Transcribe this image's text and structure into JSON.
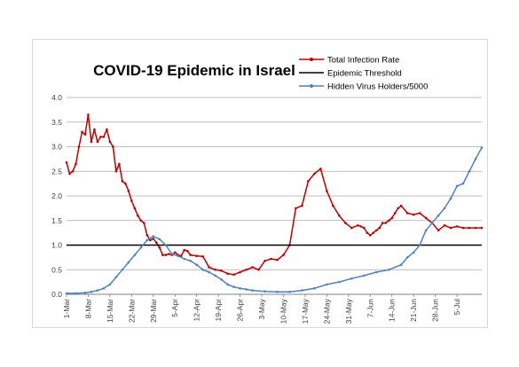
{
  "chart_data": {
    "type": "line",
    "title": "COVID-19 Epidemic in Israel",
    "xlabel": "",
    "ylabel": "",
    "ylim": [
      0,
      4.0
    ],
    "y_ticks": [
      "0.0",
      "0.5",
      "1.0",
      "1.5",
      "2.0",
      "2.5",
      "3.0",
      "3.5",
      "4.0"
    ],
    "x_ticks": [
      "1-Mar",
      "8-Mar",
      "15-Mar",
      "22-Mar",
      "29-Mar",
      "5-Apr",
      "12-Apr",
      "19-Apr",
      "26-Apr",
      "3-May",
      "10-May",
      "17-May",
      "24-May",
      "31-May",
      "7-Jun",
      "14-Jun",
      "21-Jun",
      "28-Jun",
      "5-Jul"
    ],
    "x_range_days": [
      0,
      134
    ],
    "grid": "horizontal",
    "legend_position": "top-right",
    "series": [
      {
        "name": "Total Infection Rate",
        "color": "#c00000",
        "marker": "dot",
        "x": [
          0,
          1,
          2,
          3,
          4,
          5,
          6,
          7,
          8,
          9,
          10,
          11,
          12,
          13,
          14,
          15,
          16,
          17,
          18,
          19,
          20,
          21,
          22,
          23,
          24,
          25,
          26,
          27,
          28,
          29,
          30,
          31,
          32,
          33,
          34,
          35,
          36,
          37,
          38,
          39,
          40,
          42,
          44,
          46,
          48,
          50,
          52,
          54,
          56,
          58,
          60,
          62,
          64,
          66,
          68,
          70,
          72,
          74,
          76,
          78,
          80,
          82,
          84,
          86,
          88,
          90,
          92,
          94,
          95,
          96,
          97,
          98,
          99,
          100,
          101,
          102,
          103,
          104,
          105,
          106,
          107,
          108,
          110,
          112,
          114,
          116,
          118,
          120,
          122,
          124,
          126,
          128,
          130,
          132,
          134
        ],
        "values": [
          2.68,
          2.45,
          2.5,
          2.65,
          3.0,
          3.3,
          3.25,
          3.65,
          3.1,
          3.35,
          3.1,
          3.2,
          3.2,
          3.35,
          3.1,
          3.0,
          2.5,
          2.65,
          2.3,
          2.25,
          2.1,
          1.9,
          1.75,
          1.6,
          1.5,
          1.45,
          1.2,
          1.1,
          1.13,
          1.05,
          0.95,
          0.8,
          0.8,
          0.82,
          0.8,
          0.85,
          0.8,
          0.78,
          0.9,
          0.88,
          0.8,
          0.78,
          0.77,
          0.55,
          0.5,
          0.48,
          0.42,
          0.4,
          0.45,
          0.5,
          0.55,
          0.5,
          0.68,
          0.72,
          0.7,
          0.8,
          1.0,
          1.75,
          1.8,
          2.3,
          2.45,
          2.55,
          2.1,
          1.8,
          1.6,
          1.45,
          1.35,
          1.4,
          1.38,
          1.35,
          1.25,
          1.2,
          1.25,
          1.3,
          1.35,
          1.45,
          1.45,
          1.5,
          1.55,
          1.65,
          1.75,
          1.8,
          1.65,
          1.62,
          1.65,
          1.55,
          1.45,
          1.3,
          1.4,
          1.35,
          1.38,
          1.35,
          1.35,
          1.35,
          1.35
        ]
      },
      {
        "name": "Epidemic Threshold",
        "color": "#000000",
        "marker": "none",
        "x": [
          0,
          134
        ],
        "values": [
          1.0,
          1.0
        ]
      },
      {
        "name": "Hidden Virus Holders/5000",
        "color": "#4f81bd",
        "marker": "dot",
        "x": [
          0,
          3,
          6,
          8,
          10,
          12,
          14,
          16,
          18,
          20,
          22,
          24,
          26,
          28,
          30,
          32,
          34,
          36,
          38,
          40,
          42,
          44,
          46,
          48,
          50,
          52,
          54,
          56,
          58,
          60,
          64,
          68,
          72,
          76,
          80,
          84,
          88,
          92,
          96,
          100,
          104,
          108,
          110,
          112,
          114,
          116,
          118,
          120,
          122,
          124,
          126,
          128,
          130,
          132,
          134
        ],
        "values": [
          0.02,
          0.02,
          0.03,
          0.05,
          0.08,
          0.12,
          0.2,
          0.35,
          0.5,
          0.65,
          0.8,
          0.95,
          1.1,
          1.18,
          1.12,
          1.0,
          0.82,
          0.78,
          0.72,
          0.68,
          0.6,
          0.5,
          0.45,
          0.38,
          0.3,
          0.2,
          0.15,
          0.12,
          0.1,
          0.08,
          0.06,
          0.05,
          0.05,
          0.08,
          0.12,
          0.2,
          0.25,
          0.32,
          0.38,
          0.45,
          0.5,
          0.6,
          0.75,
          0.85,
          1.0,
          1.3,
          1.45,
          1.6,
          1.75,
          1.95,
          2.2,
          2.25,
          2.5,
          2.75,
          2.98
        ]
      }
    ]
  }
}
